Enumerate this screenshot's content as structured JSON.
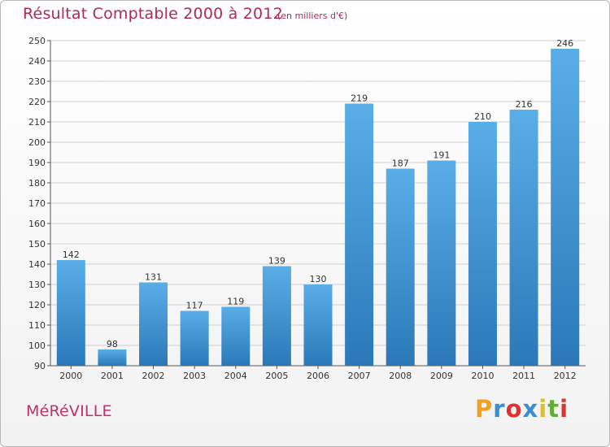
{
  "title": "Résultat Comptable 2000 à 2012",
  "subtitle": "(en milliers d'€)",
  "city": "MéRéVILLE",
  "logo": {
    "letters": [
      "P",
      "r",
      "o",
      "x",
      "i",
      "t",
      "i"
    ],
    "colors": [
      "#f0a020",
      "#3a8ed0",
      "#e03030",
      "#3a8ed0",
      "#e0c020",
      "#60b030",
      "#e03030"
    ]
  },
  "colors": {
    "bar_top": "#5aaee8",
    "bar_bottom": "#2a78b8",
    "grid": "#d0d0d0",
    "title": "#b0285a"
  },
  "chart_data": {
    "type": "bar",
    "categories": [
      "2000",
      "2001",
      "2002",
      "2003",
      "2004",
      "2005",
      "2006",
      "2007",
      "2008",
      "2009",
      "2010",
      "2011",
      "2012"
    ],
    "values": [
      142,
      98,
      131,
      117,
      119,
      139,
      130,
      219,
      187,
      191,
      210,
      216,
      246
    ],
    "ylim": [
      90,
      250
    ],
    "yticks": [
      90,
      100,
      110,
      120,
      130,
      140,
      150,
      160,
      170,
      180,
      190,
      200,
      210,
      220,
      230,
      240,
      250
    ],
    "grid": true,
    "title": "Résultat Comptable 2000 à 2012",
    "xlabel": "",
    "ylabel": ""
  }
}
